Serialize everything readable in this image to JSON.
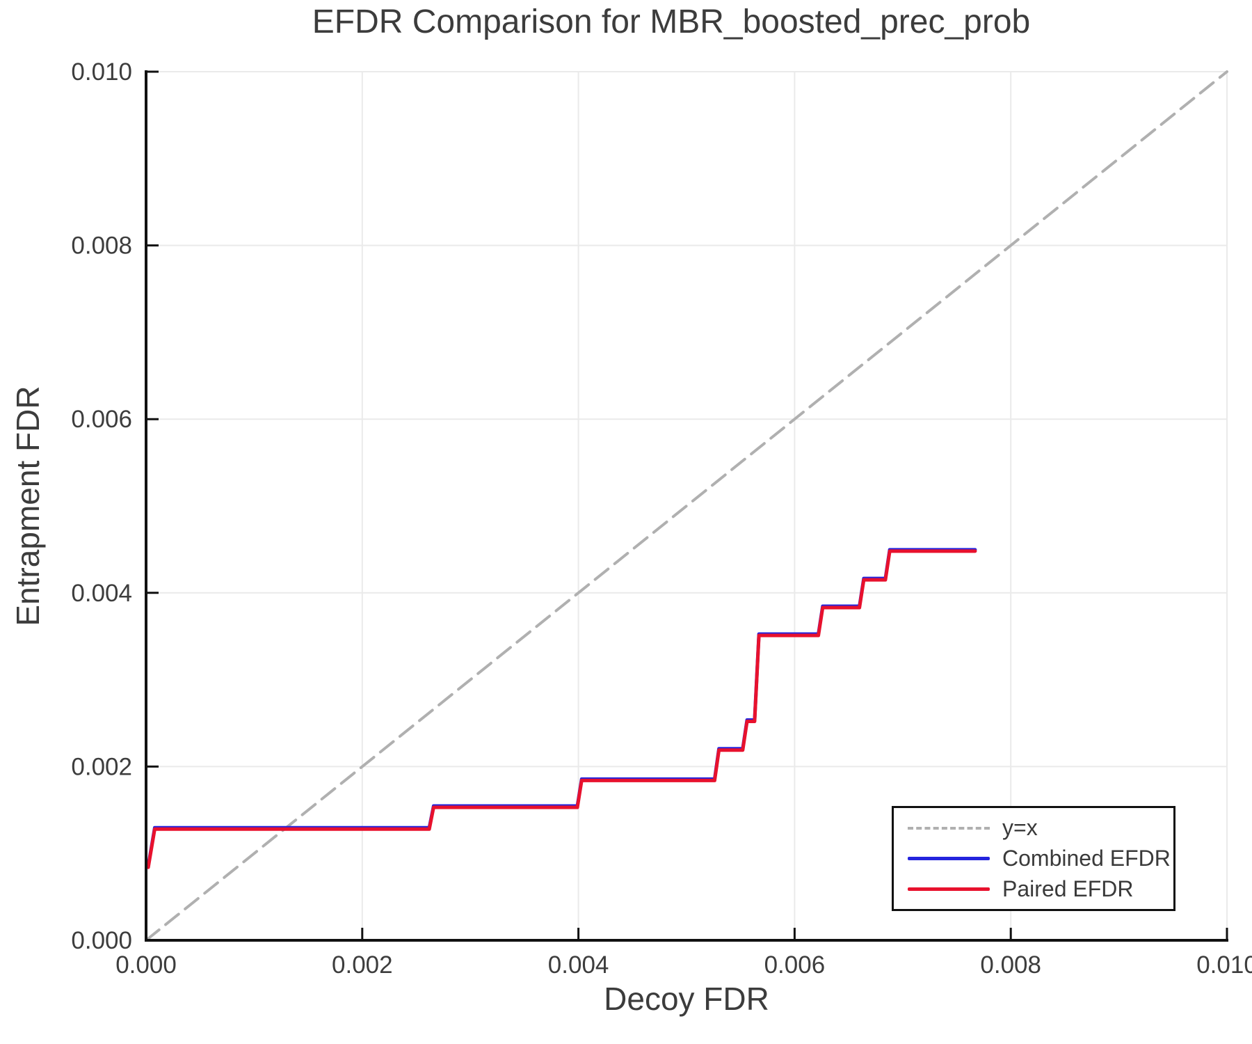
{
  "chart_data": {
    "type": "line",
    "title": "EFDR Comparison for MBR_boosted_prec_prob",
    "xlabel": "Decoy FDR",
    "ylabel": "Entrapment FDR",
    "xlim": [
      0.0,
      0.01
    ],
    "ylim": [
      0.0,
      0.01
    ],
    "grid": true,
    "xticks": {
      "values": [
        0.0,
        0.002,
        0.004,
        0.006,
        0.008,
        0.01
      ],
      "labels": [
        "0.000",
        "0.002",
        "0.004",
        "0.006",
        "0.008",
        "0.010"
      ]
    },
    "yticks": {
      "values": [
        0.0,
        0.002,
        0.004,
        0.006,
        0.008,
        0.01
      ],
      "labels": [
        "0.000",
        "0.002",
        "0.004",
        "0.006",
        "0.008",
        "0.010"
      ]
    },
    "legend": {
      "position": "lower right",
      "items": [
        {
          "label": "y=x",
          "color": "#b0b0b0",
          "style": "dashed"
        },
        {
          "label": "Combined EFDR",
          "color": "#2424dd",
          "style": "solid"
        },
        {
          "label": "Paired EFDR",
          "color": "#e8112d",
          "style": "solid"
        }
      ]
    },
    "series": [
      {
        "name": "y=x",
        "style": "dashed",
        "color": "#b0b0b0",
        "x": [
          0.0,
          0.01
        ],
        "y": [
          0.0,
          0.01
        ]
      },
      {
        "name": "Combined EFDR",
        "style": "solid",
        "color": "#2424dd",
        "x": [
          2e-05,
          8e-05,
          0.00262,
          0.00266,
          0.00399,
          0.00403,
          0.00526,
          0.0053,
          0.00552,
          0.00556,
          0.00563,
          0.00567,
          0.00622,
          0.00626,
          0.0066,
          0.00664,
          0.00684,
          0.00688,
          0.00767
        ],
        "y": [
          0.00084,
          0.00128,
          0.00128,
          0.00153,
          0.00153,
          0.00184,
          0.00184,
          0.00219,
          0.00219,
          0.00252,
          0.00252,
          0.00351,
          0.00351,
          0.00383,
          0.00383,
          0.00415,
          0.00415,
          0.00448,
          0.00448
        ]
      },
      {
        "name": "Paired EFDR",
        "style": "solid",
        "color": "#e8112d",
        "x": [
          2e-05,
          8e-05,
          0.00262,
          0.00266,
          0.00399,
          0.00403,
          0.00526,
          0.0053,
          0.00552,
          0.00556,
          0.00563,
          0.00567,
          0.00622,
          0.00626,
          0.0066,
          0.00664,
          0.00684,
          0.00688,
          0.00767
        ],
        "y": [
          0.00084,
          0.00128,
          0.00128,
          0.00153,
          0.00153,
          0.00184,
          0.00184,
          0.00219,
          0.00219,
          0.00252,
          0.00252,
          0.00351,
          0.00351,
          0.00383,
          0.00383,
          0.00415,
          0.00415,
          0.00448,
          0.00448
        ]
      }
    ],
    "colors": {
      "grid": "#eaeaea",
      "spine": "#111111",
      "tick_text": "#3d3d3d",
      "background": "#ffffff"
    }
  }
}
